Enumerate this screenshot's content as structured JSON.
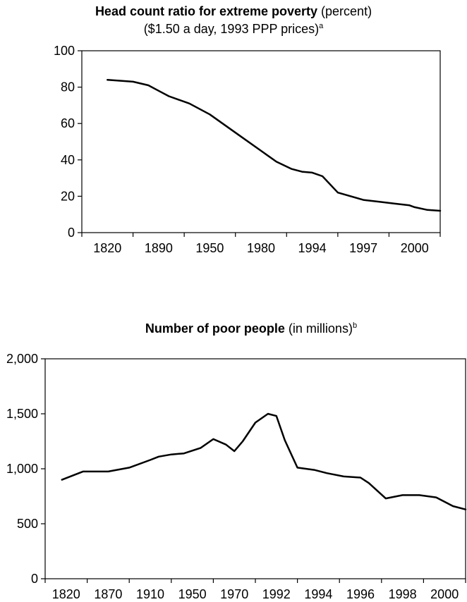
{
  "chart_data": [
    {
      "type": "line",
      "title_bold": "Head count ratio for extreme poverty",
      "title_rest": " (percent)",
      "subtitle": "($1.50 a day, 1993 PPP prices)",
      "subtitle_note": "a",
      "categories": [
        "1820",
        "1890",
        "1950",
        "1980",
        "1994",
        "1997",
        "2000"
      ],
      "ylim": [
        0,
        100
      ],
      "yticks": [
        "100",
        "80",
        "60",
        "40",
        "20",
        "0"
      ],
      "ytick_values": [
        100,
        80,
        60,
        40,
        20,
        0
      ],
      "x": [
        0.0,
        0.5,
        0.8,
        1.0,
        1.2,
        1.4,
        1.6,
        2.0,
        2.3,
        2.6,
        3.0,
        3.3,
        3.6,
        3.8,
        4.0,
        4.2,
        4.5,
        5.0,
        5.3,
        5.6,
        5.9,
        6.0,
        6.25,
        6.5
      ],
      "values": [
        84,
        83,
        81,
        78,
        75,
        73,
        71,
        65,
        59,
        53,
        45,
        39,
        35,
        33.5,
        33,
        31,
        22,
        18,
        17,
        16,
        15,
        14,
        12.5,
        12
      ]
    },
    {
      "type": "line",
      "title_bold": "Number of poor people",
      "title_rest": " (in millions)",
      "title_note": "b",
      "categories": [
        "1820",
        "1870",
        "1910",
        "1950",
        "1970",
        "1992",
        "1994",
        "1996",
        "1998",
        "2000"
      ],
      "ylim": [
        0,
        2000
      ],
      "yticks": [
        "2,000",
        "1,500",
        "1,000",
        "500",
        "0"
      ],
      "ytick_values": [
        2000,
        1500,
        1000,
        500,
        0
      ],
      "x": [
        -0.1,
        0.4,
        1.0,
        1.5,
        2.0,
        2.2,
        2.5,
        2.8,
        3.2,
        3.5,
        3.8,
        4.0,
        4.2,
        4.5,
        4.8,
        5.0,
        5.2,
        5.5,
        5.9,
        6.2,
        6.6,
        7.0,
        7.2,
        7.6,
        8.0,
        8.4,
        8.8,
        9.2,
        9.5
      ],
      "values": [
        900,
        975,
        975,
        1010,
        1080,
        1110,
        1130,
        1140,
        1190,
        1270,
        1220,
        1160,
        1250,
        1420,
        1500,
        1480,
        1260,
        1010,
        990,
        960,
        930,
        920,
        870,
        730,
        760,
        760,
        740,
        660,
        630
      ]
    }
  ]
}
